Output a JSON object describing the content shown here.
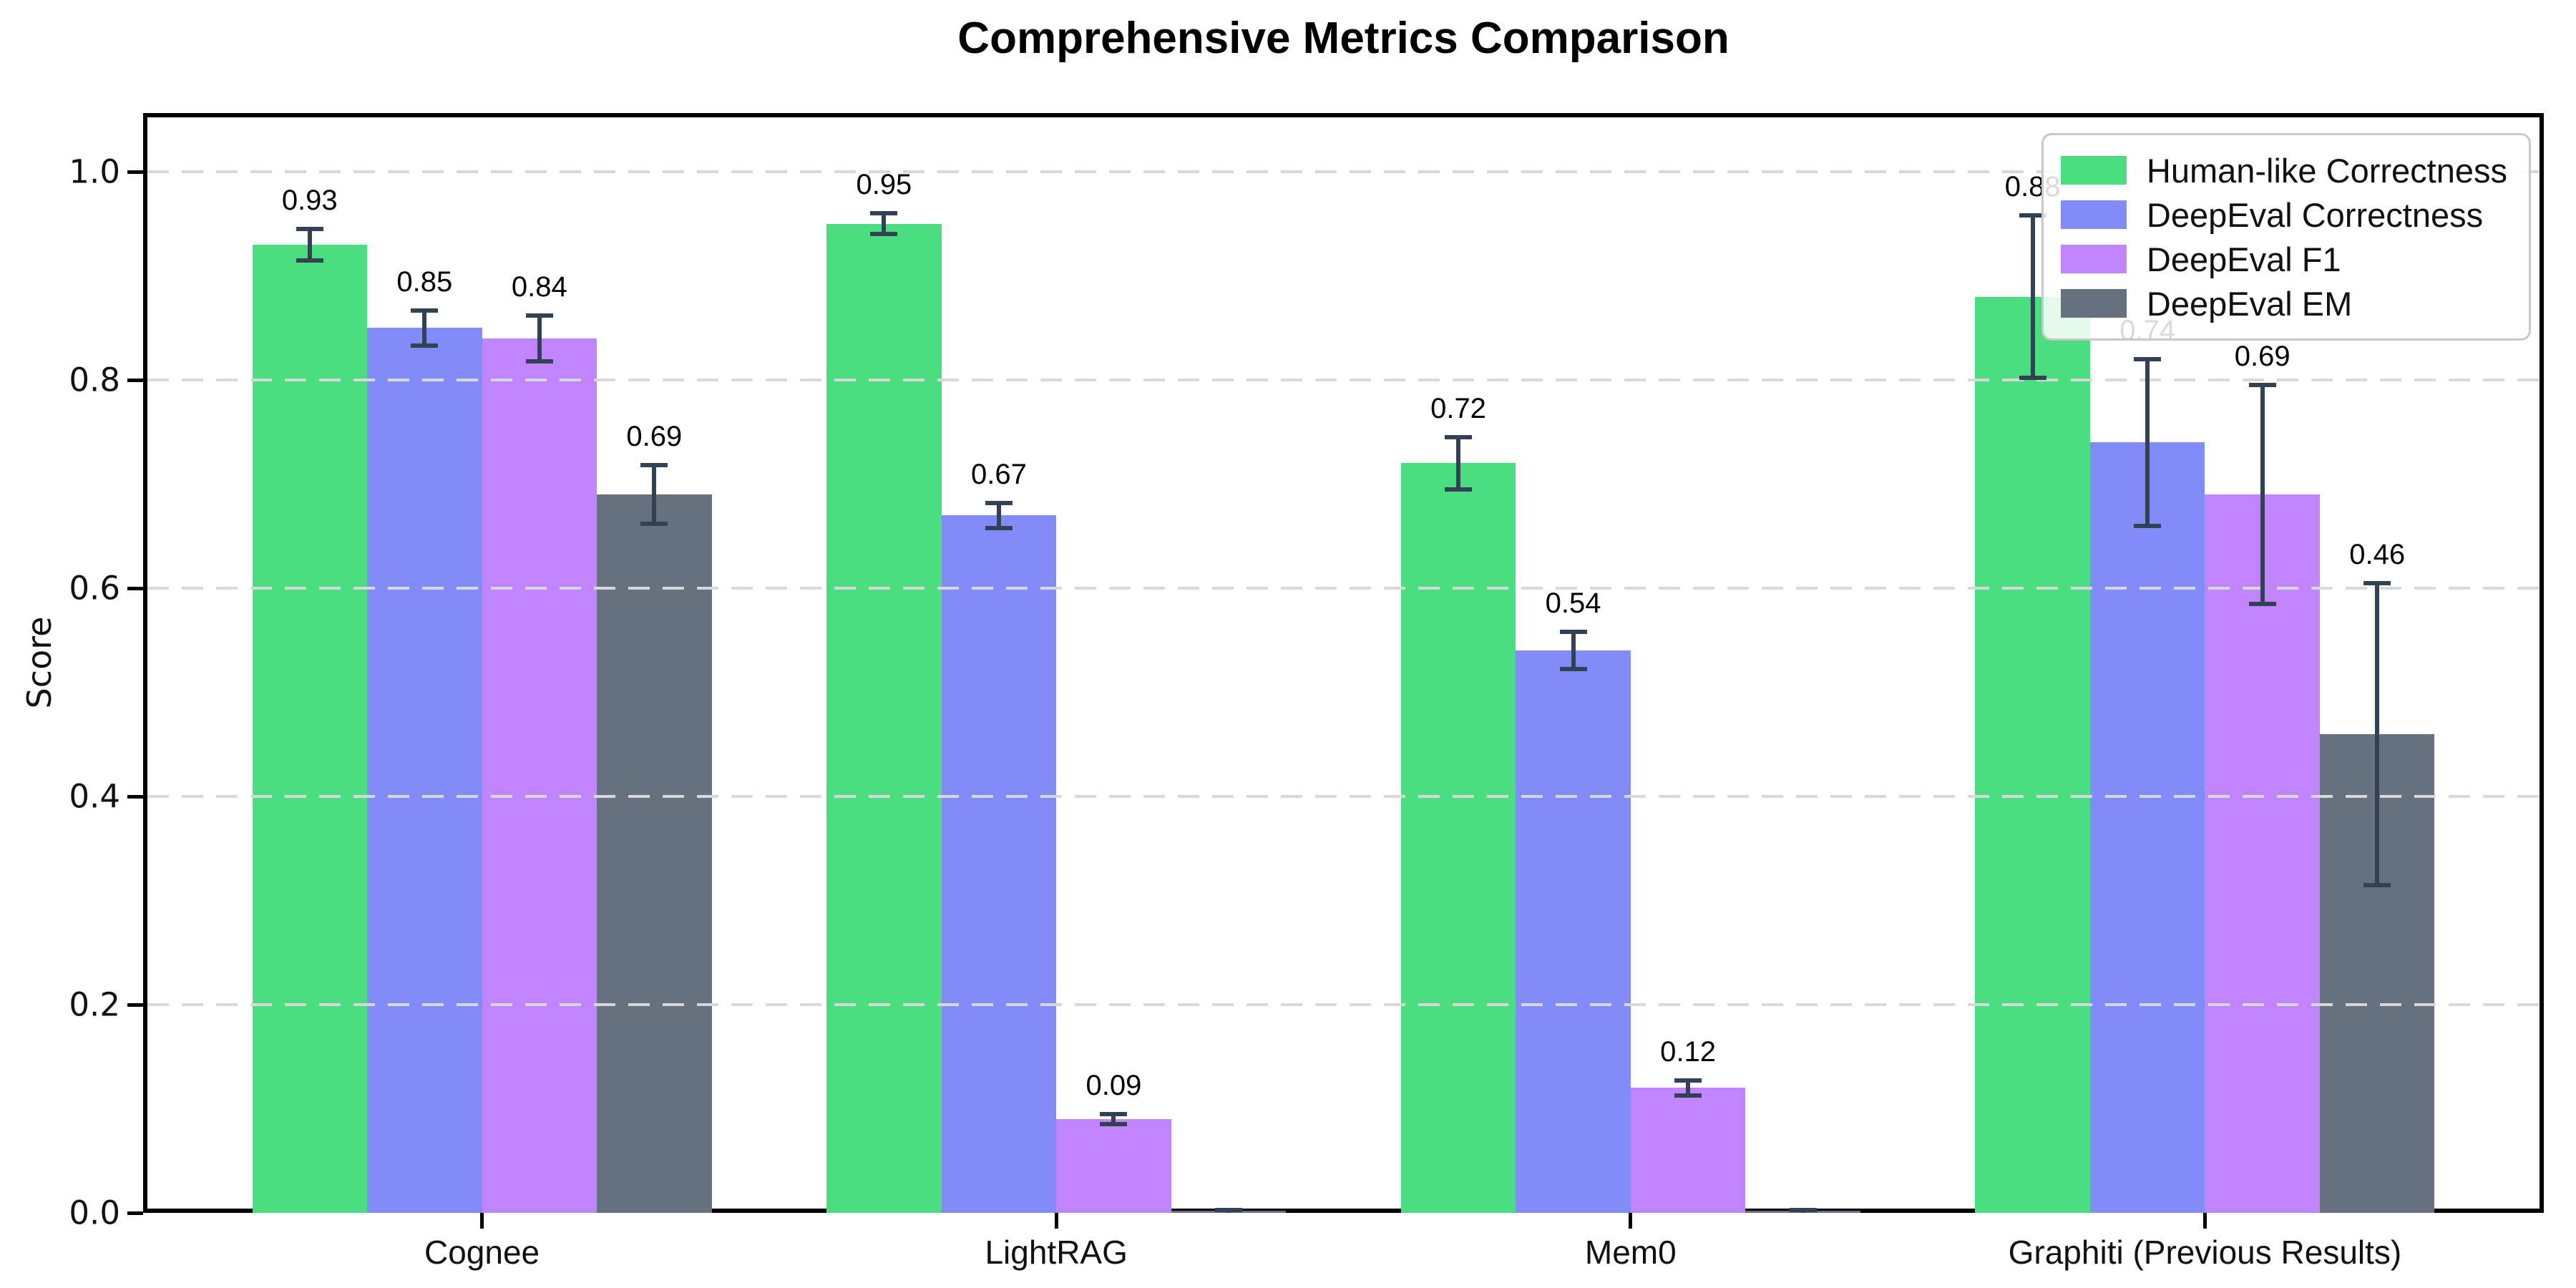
{
  "title": "Comprehensive Metrics Comparison",
  "chart_data": {
    "type": "bar",
    "title": "Comprehensive Metrics Comparison",
    "ylabel": "Score",
    "categories": [
      "Cognee",
      "LightRAG",
      "Mem0",
      "Graphiti (Previous Results)"
    ],
    "ylim": [
      0.0,
      1.056
    ],
    "yticks": [
      "0.0",
      "0.2",
      "0.4",
      "0.6",
      "0.8",
      "1.0"
    ],
    "grid": "horizontal-dashed",
    "grid_color": "#d8d8d8",
    "error_color": "#334155",
    "legend_position": "upper-right",
    "series": [
      {
        "name": "Human-like Correctness",
        "color": "#4ade80",
        "values": [
          0.93,
          0.95,
          0.72,
          0.88
        ],
        "errors": [
          0.015,
          0.01,
          0.025,
          0.078
        ],
        "labels": [
          "0.93",
          "0.95",
          "0.72",
          "0.88"
        ]
      },
      {
        "name": "DeepEval Correctness",
        "color": "#818cf8",
        "values": [
          0.85,
          0.67,
          0.54,
          0.74
        ],
        "errors": [
          0.017,
          0.012,
          0.018,
          0.08
        ],
        "labels": [
          "0.85",
          "0.67",
          "0.54",
          "0.74"
        ]
      },
      {
        "name": "DeepEval F1",
        "color": "#c084fc",
        "values": [
          0.84,
          0.09,
          0.12,
          0.69
        ],
        "errors": [
          0.022,
          0.005,
          0.007,
          0.105
        ],
        "labels": [
          "0.84",
          "0.09",
          "0.12",
          "0.69"
        ]
      },
      {
        "name": "DeepEval EM",
        "color": "#66717f",
        "values": [
          0.69,
          0.0,
          0.0,
          0.46
        ],
        "errors": [
          0.028,
          0.003,
          0.003,
          0.145
        ],
        "labels": [
          "0.69",
          "",
          "",
          "0.46"
        ]
      }
    ]
  }
}
